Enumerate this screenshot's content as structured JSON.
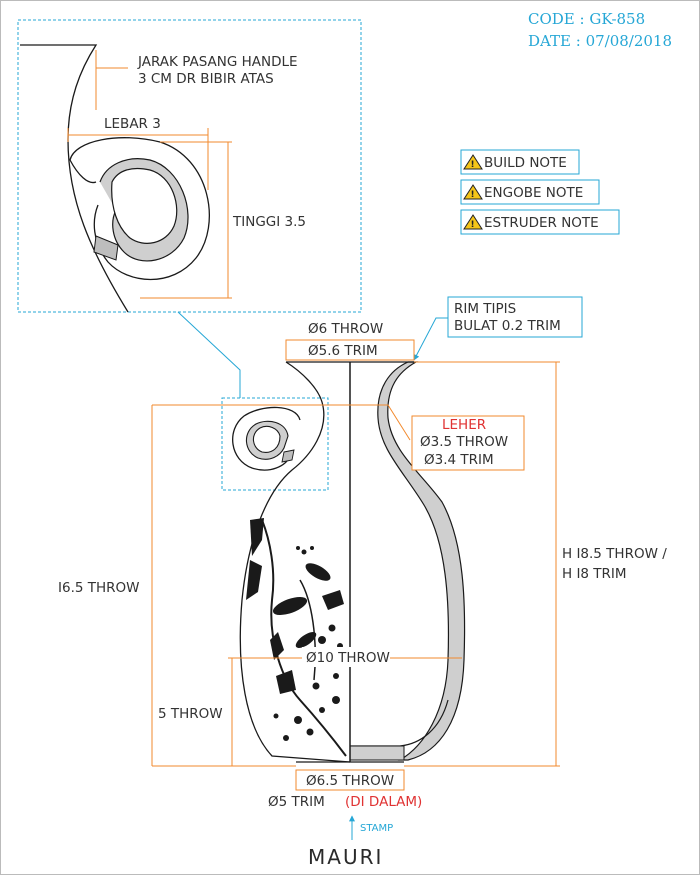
{
  "header": {
    "code": "CODE : GK-858",
    "date": "DATE : 07/08/2018"
  },
  "notes": [
    {
      "icon": "warning-icon",
      "label": "BUILD NOTE"
    },
    {
      "icon": "warning-icon",
      "label": "ENGOBE NOTE"
    },
    {
      "icon": "warning-icon",
      "label": "ESTRUDER NOTE"
    }
  ],
  "detail": {
    "handle_position_line1": "JARAK PASANG HANDLE",
    "handle_position_line2": "3 CM DR BIBIR ATAS",
    "width": "LEBAR 3",
    "height": "TINGGI 3.5"
  },
  "rim": {
    "line1": "RIM TIPIS",
    "line2": "BULAT 0.2 TRIM"
  },
  "dimensions": {
    "top_throw": "Ø6 THROW",
    "top_trim": "Ø5.6 TRIM",
    "neck_label": "LEHER",
    "neck_throw": "Ø3.5 THROW",
    "neck_trim": "Ø3.4 TRIM",
    "height_throw": "H I8.5 THROW /",
    "height_trim": "H I8 TRIM",
    "left_height": "I6.5 THROW",
    "lower_height": "5 THROW",
    "belly": "Ø10 THROW",
    "base_throw": "Ø6.5 THROW",
    "base_trim": "Ø5 TRIM",
    "base_inside": "(DI DALAM)"
  },
  "stamp": {
    "label": "STAMP",
    "brand": "MAURI"
  },
  "colors": {
    "cyan": "#26a7d6",
    "orange": "#f28a2e",
    "red": "#e03333"
  }
}
